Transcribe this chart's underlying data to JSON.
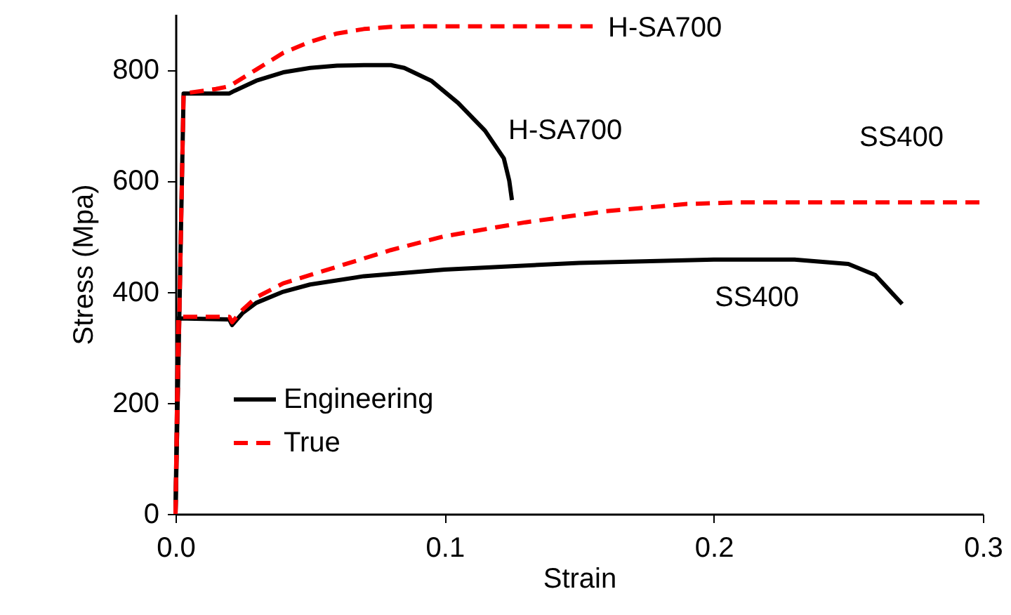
{
  "chart_data": {
    "type": "line",
    "xlabel": "Strain",
    "ylabel": "Stress (Mpa)",
    "xlim": [
      0,
      0.3
    ],
    "xticks": [
      {
        "value": 0,
        "label": "0.0"
      },
      0.1,
      0.2,
      0.3
    ],
    "ylim": [
      0,
      900
    ],
    "yticks": [
      0,
      200,
      400,
      600,
      800
    ],
    "grid": false,
    "legend": "bottom left",
    "marker": "none",
    "series": [
      {
        "name": "Engineering",
        "color": "#000000",
        "line_style": "solid",
        "x": [
          0,
          0.003,
          0.02,
          0.022,
          0.03,
          0.04,
          0.05,
          0.06,
          0.07,
          0.08,
          0.085,
          0.095,
          0.105,
          0.115,
          0.122,
          0.124,
          0.125
        ],
        "values": [
          0,
          757,
          757,
          762,
          780,
          795,
          803,
          807,
          808,
          808,
          803,
          780,
          740,
          690,
          640,
          600,
          565
        ]
      },
      {
        "name": "True",
        "color": "#ff0000",
        "line_style": "dashed",
        "x": [
          0,
          0.003,
          0.015,
          0.02,
          0.03,
          0.04,
          0.05,
          0.06,
          0.07,
          0.08,
          0.09,
          0.12,
          0.155
        ],
        "values": [
          0,
          757,
          765,
          770,
          800,
          830,
          850,
          865,
          873,
          877,
          878,
          878,
          878
        ]
      },
      {
        "color": "#000000",
        "line_style": "solid",
        "x": [
          0,
          0.001,
          0.02,
          0.021,
          0.025,
          0.03,
          0.04,
          0.05,
          0.07,
          0.1,
          0.15,
          0.2,
          0.23,
          0.25,
          0.26,
          0.27
        ],
        "values": [
          0,
          352,
          350,
          340,
          362,
          380,
          400,
          413,
          428,
          440,
          452,
          458,
          458,
          450,
          430,
          378
        ]
      },
      {
        "color": "#ff0000",
        "line_style": "dashed",
        "x": [
          0,
          0.001,
          0.02,
          0.021,
          0.025,
          0.03,
          0.04,
          0.06,
          0.08,
          0.1,
          0.13,
          0.16,
          0.19,
          0.21,
          0.3
        ],
        "values": [
          0,
          355,
          355,
          345,
          368,
          390,
          415,
          445,
          475,
          500,
          525,
          545,
          558,
          561,
          561
        ]
      }
    ],
    "annotations": [
      "H-SA700",
      "H-SA700",
      "SS400",
      "SS400"
    ]
  }
}
